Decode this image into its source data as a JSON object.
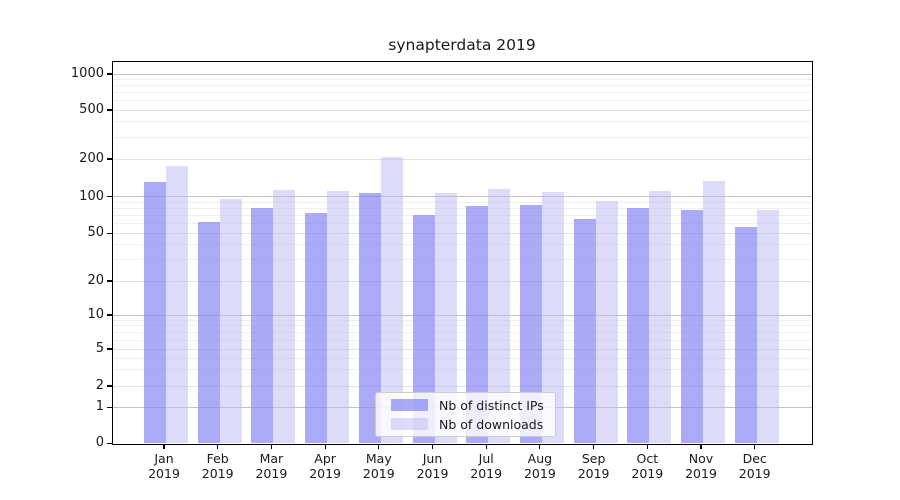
{
  "chart_data": {
    "type": "bar",
    "title": "synapterdata 2019",
    "categories": [
      "Jan 2019",
      "Feb 2019",
      "Mar 2019",
      "Apr 2019",
      "May 2019",
      "Jun 2019",
      "Jul 2019",
      "Aug 2019",
      "Sep 2019",
      "Oct 2019",
      "Nov 2019",
      "Dec 2019"
    ],
    "series": [
      {
        "name": "Nb of distinct IPs",
        "color": "rgba(134,134,242,0.7)",
        "values": [
          130,
          62,
          81,
          74,
          107,
          71,
          84,
          85,
          66,
          81,
          78,
          56
        ]
      },
      {
        "name": "Nb of downloads",
        "color": "rgba(185,185,243,0.5)",
        "values": [
          175,
          95,
          114,
          111,
          207,
          108,
          115,
          110,
          92,
          111,
          133,
          78
        ]
      }
    ],
    "xlabel": "",
    "ylabel": "",
    "yscale": "symlog",
    "yticks": [
      0,
      1,
      2,
      5,
      10,
      20,
      50,
      100,
      200,
      500,
      1000
    ],
    "minor_gridline_values": [
      3,
      4,
      6,
      7,
      8,
      9,
      30,
      40,
      60,
      70,
      80,
      90,
      300,
      400,
      600,
      700,
      800,
      900
    ],
    "ylim": [
      0,
      1300
    ],
    "grid": true,
    "legend_position": "lower center"
  }
}
